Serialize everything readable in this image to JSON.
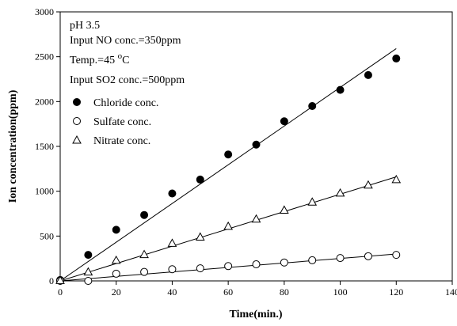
{
  "chart_data": {
    "type": "scatter",
    "xlabel": "Time(min.)",
    "ylabel": "Ion concentration(ppm)",
    "xlim": [
      0,
      140
    ],
    "ylim": [
      0,
      3000
    ],
    "xticks": [
      0,
      20,
      40,
      60,
      80,
      100,
      120,
      140
    ],
    "yticks": [
      0,
      500,
      1000,
      1500,
      2000,
      2500,
      3000
    ],
    "grid": false,
    "legend_placement": "top-left",
    "annotations": {
      "ph": "pH 3.5",
      "no_conc": "Input NO conc.=350ppm",
      "temp_prefix": "Temp.=45 ",
      "temp_sup": "o",
      "temp_suffix": "C",
      "so2_conc": "Input SO2 conc.=500ppm"
    },
    "x": [
      0,
      10,
      20,
      30,
      40,
      50,
      60,
      70,
      80,
      90,
      100,
      110,
      120
    ],
    "series": [
      {
        "name": "Chloride conc.",
        "marker": "filled-circle",
        "values": [
          10,
          290,
          570,
          735,
          975,
          1130,
          1410,
          1520,
          1780,
          1950,
          2130,
          2295,
          2480
        ],
        "fit": [
          0,
          2590
        ]
      },
      {
        "name": "Sulfate conc.",
        "marker": "open-circle",
        "values": [
          0,
          0,
          80,
          100,
          130,
          140,
          165,
          185,
          205,
          230,
          255,
          275,
          290
        ],
        "fit": [
          0,
          300
        ]
      },
      {
        "name": "Nitrate conc.",
        "marker": "open-triangle",
        "values": [
          5,
          100,
          230,
          295,
          420,
          490,
          610,
          690,
          790,
          880,
          980,
          1070,
          1130
        ],
        "fit": [
          0,
          1160
        ]
      }
    ]
  }
}
